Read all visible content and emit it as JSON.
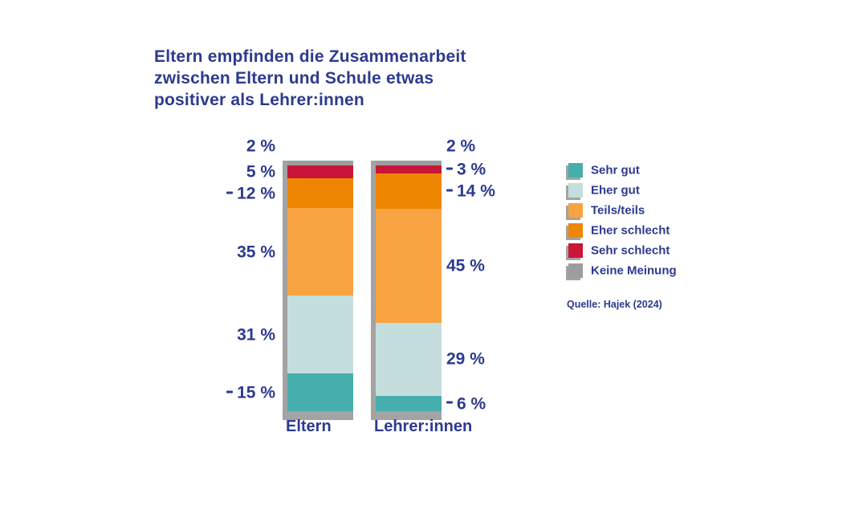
{
  "window": {
    "background": "#ffffff"
  },
  "title": {
    "lines": "Eltern empfinden die Zusammenarbeit\nzwischen Eltern und Schule etwas\npositiver als Lehrer:innen",
    "color": "#2c3a8e"
  },
  "source_note": {
    "text": "Quelle: Hajek (2024)"
  },
  "chart_data": {
    "type": "bar",
    "stacked": true,
    "orientation": "vertical",
    "title": "Eltern empfinden die Zusammenarbeit zwischen Eltern und Schule etwas positiver als Lehrer:innen",
    "unit": "%",
    "categories": [
      "Eltern",
      "Lehrer:innen"
    ],
    "series": [
      {
        "name": "Sehr gut",
        "color": "#46aeac",
        "values": [
          15,
          6
        ]
      },
      {
        "name": "Eher gut",
        "color": "#c4dedd",
        "values": [
          31,
          29
        ]
      },
      {
        "name": "Teils/teils",
        "color": "#f7a341",
        "values": [
          35,
          45
        ]
      },
      {
        "name": "Eher schlecht",
        "color": "#ee8601",
        "values": [
          12,
          14
        ]
      },
      {
        "name": "Sehr schlecht",
        "color": "#c91538",
        "values": [
          5,
          3
        ]
      },
      {
        "name": "Keine Meinung",
        "color": "#9d9d9d",
        "values": [
          2,
          2
        ]
      }
    ],
    "stack_order_bottom_to_top": [
      "Sehr gut",
      "Eher gut",
      "Teils/teils",
      "Eher schlecht",
      "Sehr schlecht",
      "Keine Meinung"
    ],
    "value_label_format": "{v} %",
    "value_label_side_by_category": [
      "left",
      "right"
    ],
    "ticked_value_labels": {
      "Eltern": [
        12,
        15
      ],
      "Lehrer:innen": [
        3,
        14,
        6
      ]
    },
    "legend": {
      "position": "right",
      "entries": [
        "Sehr gut",
        "Eher gut",
        "Teils/teils",
        "Eher schlecht",
        "Sehr schlecht",
        "Keine Meinung"
      ]
    },
    "axis": {
      "gridlines": false,
      "y_axis_visible": false,
      "x_axis_visible": false
    },
    "ylim": [
      0,
      100
    ],
    "shadow_color": "#a3a3a3",
    "label_color": "#2c3a8e"
  }
}
